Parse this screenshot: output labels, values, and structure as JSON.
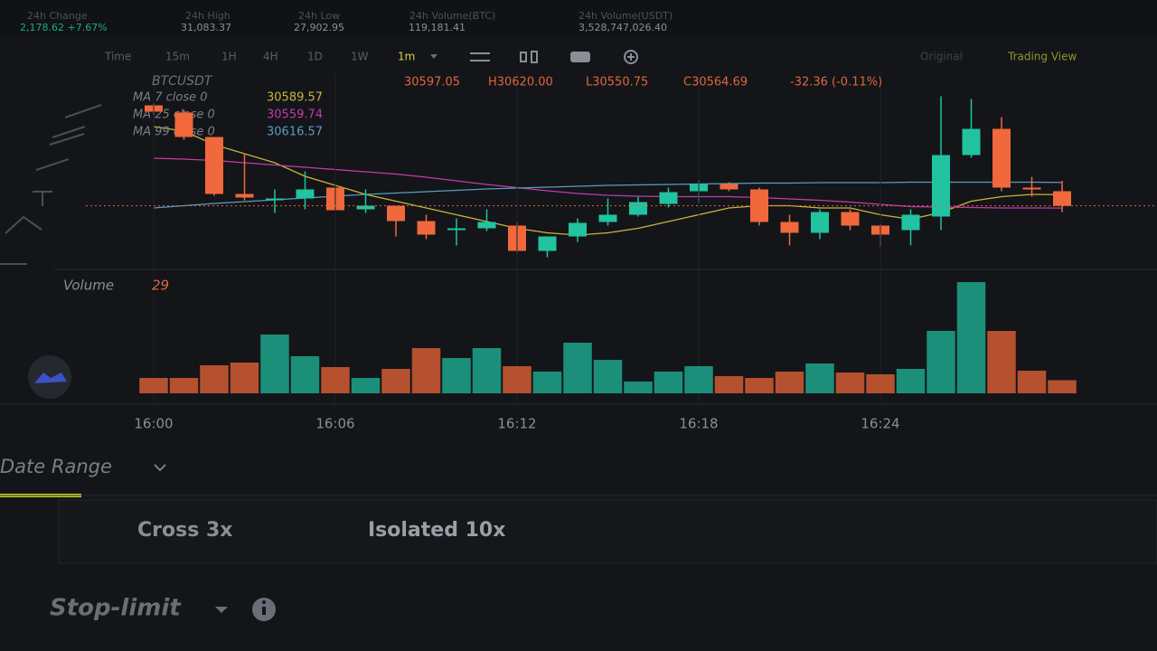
{
  "ticker_stats": [
    {
      "label": "24h Change",
      "value": "2,178.62 +7.67%"
    },
    {
      "label": "24h High",
      "value": "31,083.37"
    },
    {
      "label": "24h Low",
      "value": "27,902.95"
    },
    {
      "label": "24h Volume(BTC)",
      "value": "119,181.41"
    },
    {
      "label": "24h Volume(USDT)",
      "value": "3,528,747,026.40"
    }
  ],
  "toolbar": {
    "intervals": [
      "Time",
      "15m",
      "1H",
      "4H",
      "1D",
      "1W",
      "1m"
    ],
    "views": [
      "Original",
      "Trading View"
    ]
  },
  "chart_data": [
    {
      "type": "candlestick",
      "title": "BTCUSDT",
      "ohlc_labels": [
        "30597.05",
        "H30620.00",
        "L30550.75",
        "C30564.69",
        "-32.36 (-0.11%)"
      ],
      "categories": [
        "16:00",
        null,
        null,
        null,
        null,
        null,
        "16:06",
        null,
        null,
        null,
        null,
        null,
        "16:12",
        null,
        null,
        null,
        null,
        null,
        "16:18",
        null,
        null,
        null,
        null,
        null,
        "16:24",
        null,
        null,
        null,
        null,
        null,
        null
      ],
      "open": [
        30787,
        30771,
        30717,
        30591,
        30577,
        30581,
        30605,
        30557,
        30565,
        30531,
        30511,
        30515,
        30521,
        30465,
        30497,
        30529,
        30545,
        30569,
        30597,
        30613,
        30601,
        30529,
        30505,
        30551,
        30521,
        30511,
        30541,
        30677,
        30735,
        30605,
        30597.05
      ],
      "high": [
        30791,
        30777,
        30717,
        30681,
        30601,
        30641,
        30605,
        30601,
        30565,
        30545,
        30537,
        30557,
        30529,
        30497,
        30537,
        30581,
        30585,
        30605,
        30621,
        30617,
        30605,
        30545,
        30557,
        30557,
        30525,
        30557,
        30807,
        30801,
        30761,
        30629,
        30620
      ],
      "low": [
        30765,
        30711,
        30587,
        30577,
        30549,
        30557,
        30555,
        30549,
        30497,
        30491,
        30477,
        30509,
        30461,
        30451,
        30485,
        30521,
        30541,
        30561,
        30571,
        30597,
        30521,
        30477,
        30491,
        30511,
        30475,
        30477,
        30511,
        30671,
        30597,
        30585,
        30550.75
      ],
      "close": [
        30773,
        30717,
        30591,
        30583,
        30581,
        30601,
        30555,
        30565,
        30531,
        30501,
        30515,
        30529,
        30465,
        30497,
        30527,
        30545,
        30573,
        30595,
        30613,
        30601,
        30529,
        30505,
        30551,
        30521,
        30501,
        30545,
        30677,
        30735,
        30605,
        30601,
        30564.69
      ],
      "up_color": "#22c3a0",
      "down_color": "#f0683c",
      "ylim": [
        30440,
        30820
      ],
      "series": [
        {
          "name": "MA 7 close 0",
          "color": "#c9b53a",
          "values": [
            30740,
            30730,
            30700,
            30680,
            30660,
            30630,
            30610,
            30590,
            30575,
            30560,
            30545,
            30530,
            30515,
            30505,
            30500,
            30505,
            30515,
            30530,
            30545,
            30560,
            30565,
            30565,
            30560,
            30560,
            30545,
            30535,
            30550,
            30575,
            30585,
            30590,
            30589.57
          ]
        },
        {
          "name": "MA 25 close 0",
          "color": "#c53aaa",
          "values": [
            30670,
            30668,
            30665,
            30660,
            30655,
            30650,
            30645,
            30640,
            30635,
            30628,
            30620,
            30612,
            30605,
            30598,
            30592,
            30588,
            30586,
            30585,
            30585,
            30585,
            30583,
            30580,
            30577,
            30573,
            30568,
            30563,
            30562,
            30561,
            30560,
            30560,
            30559.74
          ]
        },
        {
          "name": "MA 99 close 0",
          "color": "#5a9cbf",
          "values": [
            30560,
            30565,
            30570,
            30574,
            30578,
            30582,
            30586,
            30590,
            30593,
            30596,
            30599,
            30602,
            30604,
            30606,
            30608,
            30610,
            30611,
            30612,
            30613,
            30614,
            30615,
            30615,
            30616,
            30616,
            30616,
            30617,
            30617,
            30617,
            30617,
            30617,
            30616.57
          ]
        }
      ]
    },
    {
      "type": "bar",
      "title": "Volume",
      "values": [
        34,
        34,
        62,
        68,
        130,
        82,
        58,
        34,
        54,
        100,
        78,
        100,
        60,
        48,
        112,
        74,
        26,
        48,
        60,
        38,
        34,
        48,
        66,
        46,
        42,
        54,
        138,
        246,
        138,
        50,
        29
      ],
      "up_color": "#1c8f7a",
      "down_color": "#b5512f",
      "ylim": [
        0,
        260
      ]
    }
  ],
  "date_range": "Date Range",
  "margin_modes": [
    "Cross 3x",
    "Isolated 10x"
  ],
  "order_type": "Stop-limit"
}
